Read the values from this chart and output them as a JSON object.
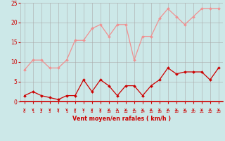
{
  "x": [
    0,
    1,
    2,
    3,
    4,
    5,
    6,
    7,
    8,
    9,
    10,
    11,
    12,
    13,
    14,
    15,
    16,
    17,
    18,
    19,
    20,
    21,
    22,
    23
  ],
  "rafales": [
    8,
    10.5,
    10.5,
    8.5,
    8.5,
    10.5,
    15.5,
    15.5,
    18.5,
    19.5,
    16.5,
    19.5,
    19.5,
    10.5,
    16.5,
    16.5,
    21,
    23.5,
    21.5,
    19.5,
    21.5,
    23.5,
    23.5,
    23.5
  ],
  "moyen": [
    1.5,
    2.5,
    1.5,
    1,
    0.5,
    1.5,
    1.5,
    5.5,
    2.5,
    5.5,
    4,
    1.5,
    4,
    4,
    1.5,
    4,
    5.5,
    8.5,
    7,
    7.5,
    7.5,
    7.5,
    5.5,
    8.5
  ],
  "arrow_angles_deg": [
    270,
    270,
    260,
    250,
    240,
    240,
    270,
    270,
    270,
    270,
    270,
    270,
    300,
    240,
    250,
    250,
    270,
    270,
    270,
    270,
    260,
    250,
    260,
    270
  ],
  "xlabel": "Vent moyen/en rafales ( km/h )",
  "ylim": [
    0,
    25
  ],
  "xlim_min": -0.5,
  "xlim_max": 23.5,
  "yticks": [
    0,
    5,
    10,
    15,
    20,
    25
  ],
  "xticks": [
    0,
    1,
    2,
    3,
    4,
    5,
    6,
    7,
    8,
    9,
    10,
    11,
    12,
    13,
    14,
    15,
    16,
    17,
    18,
    19,
    20,
    21,
    22,
    23
  ],
  "bg_color": "#cce8e8",
  "grid_color": "#aaaaaa",
  "line_rafales_color": "#f09090",
  "line_moyen_color": "#cc0000",
  "xlabel_color": "#cc0000",
  "tick_color": "#cc0000",
  "axis_line_color": "#cc0000"
}
